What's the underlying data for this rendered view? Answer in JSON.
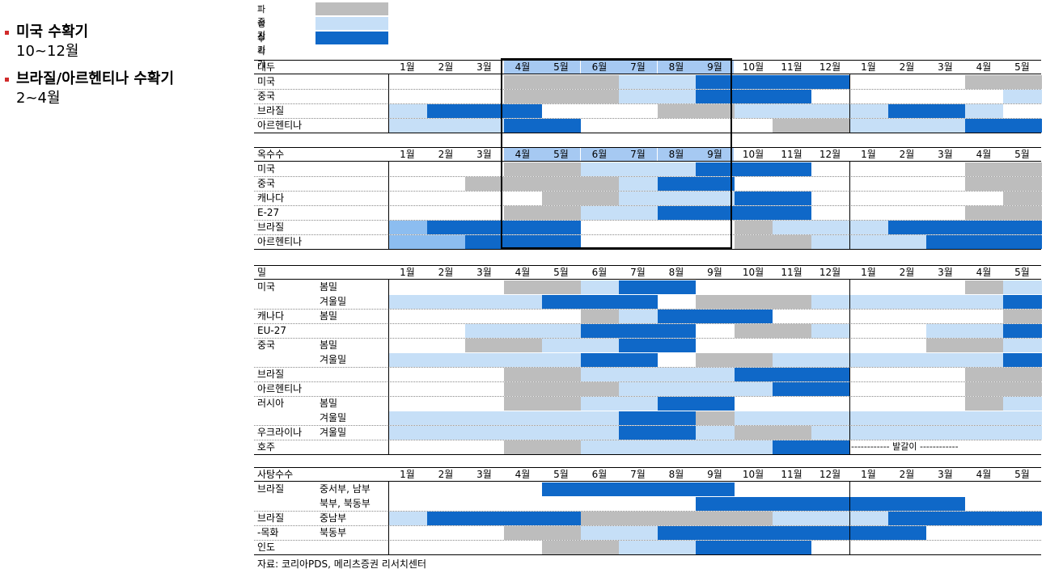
{
  "bullets": [
    {
      "head": "미국 수확기",
      "sub": "10~12월"
    },
    {
      "head": "브라질/아르헨티나 수확기",
      "sub": "2~4월"
    }
  ],
  "legend": [
    {
      "label": "파종기",
      "color": "#bdbdbd"
    },
    {
      "label": "성장기",
      "color": "#c6dff7"
    },
    {
      "label": "수확기",
      "color": "#0f68c8"
    }
  ],
  "colors": {
    "p": "#bdbdbd",
    "g": "#c6dff7",
    "h": "#0f68c8",
    "lh": "#8cbdf0",
    "header_highlight": "#a6c9f2"
  },
  "months": [
    "1월",
    "2월",
    "3월",
    "4월",
    "5월",
    "6월",
    "7월",
    "8월",
    "9월",
    "10월",
    "11월",
    "12월",
    "1월",
    "2월",
    "3월",
    "4월",
    "5월"
  ],
  "sections": [
    {
      "title": "대두",
      "highlight": [
        3,
        4,
        5,
        6,
        7,
        8
      ],
      "rows": [
        {
          "main": "미국",
          "sub": "",
          "cells": "...PPPGGHHHH...PP"
        },
        {
          "main": "중국",
          "sub": "",
          "cells": "...PPPGGHHH.....G"
        },
        {
          "main": "브라질",
          "sub": "",
          "cells": "GHHH...PPGGGGHHG."
        },
        {
          "main": "아르헨티나",
          "sub": "",
          "cells": "GGGHH.....PPGGGHH"
        }
      ]
    },
    {
      "title": "옥수수",
      "highlight": [
        3,
        4,
        5,
        6,
        7,
        8
      ],
      "rows": [
        {
          "main": "미국",
          "sub": "",
          "cells": "...PPGGGHHH....PP"
        },
        {
          "main": "중국",
          "sub": "",
          "cells": "..PPPPGHH......PP"
        },
        {
          "main": "캐나다",
          "sub": "",
          "cells": "....PPGGGHH.....P"
        },
        {
          "main": "E-27",
          "sub": "",
          "cells": "...PPGGHHHH....PP"
        },
        {
          "main": "브라질",
          "sub": "",
          "cells": "LHHHH....PGGGHHHH"
        },
        {
          "main": "아르헨티나",
          "sub": "",
          "cells": "LLHHH....PPGGGHHH"
        }
      ]
    },
    {
      "title": "밀",
      "highlight": [],
      "rows": [
        {
          "main": "미국",
          "sub": "봄밀",
          "cells": "...PPGHH.......PG"
        },
        {
          "main": "",
          "sub": "겨울밀",
          "cells": "GGGGHHH.PPPGGGGGH"
        },
        {
          "main": "캐나다",
          "sub": "봄밀",
          "cells": ".....PGHHH......P"
        },
        {
          "main": "EU-27",
          "sub": "",
          "cells": "..GGGHHH.PPG..GGH"
        },
        {
          "main": "중국",
          "sub": "봄밀",
          "cells": "..PPGGHH......PPG"
        },
        {
          "main": "",
          "sub": "겨울밀",
          "cells": "GGGGGHH.PPGGGGGGH"
        },
        {
          "main": "브라질",
          "sub": "",
          "cells": "...PPGGGGHHH...PP"
        },
        {
          "main": "아르헨티나",
          "sub": "",
          "cells": "...PPPGGGGHH...PP"
        },
        {
          "main": "러시아",
          "sub": "봄밀",
          "cells": "...PPGGHH......PG"
        },
        {
          "main": "",
          "sub": "겨울밀",
          "cells": "GGGGGGHHPGGGGGGGG"
        },
        {
          "main": "우크라이나",
          "sub": "겨울밀",
          "cells": "GGGGGGHHGPPGGGGGG"
        },
        {
          "main": "호주",
          "sub": "",
          "cells": "...PPGGGGGHH....."
        }
      ],
      "note": "------------ 발갈이 ------------"
    },
    {
      "title": "사탕수수",
      "highlight": [],
      "rows": [
        {
          "main": "브라질",
          "sub": "중서부, 남부",
          "cells": "....HHHHH........"
        },
        {
          "main": "",
          "sub": "북부, 북동부",
          "cells": "........HHHHHHH.."
        },
        {
          "main": "브라질",
          "sub": "중남부",
          "cells": "GHHHHPPPPPGGGHHHH"
        },
        {
          "main": "-목화",
          "sub": "북동부",
          "cells": "...PPGGHHHHHHH..."
        },
        {
          "main": "인도",
          "sub": "",
          "cells": "....PPGGHHH......"
        }
      ]
    }
  ],
  "source": "자료: 코리아PDS, 메리츠증권 리서치센터"
}
